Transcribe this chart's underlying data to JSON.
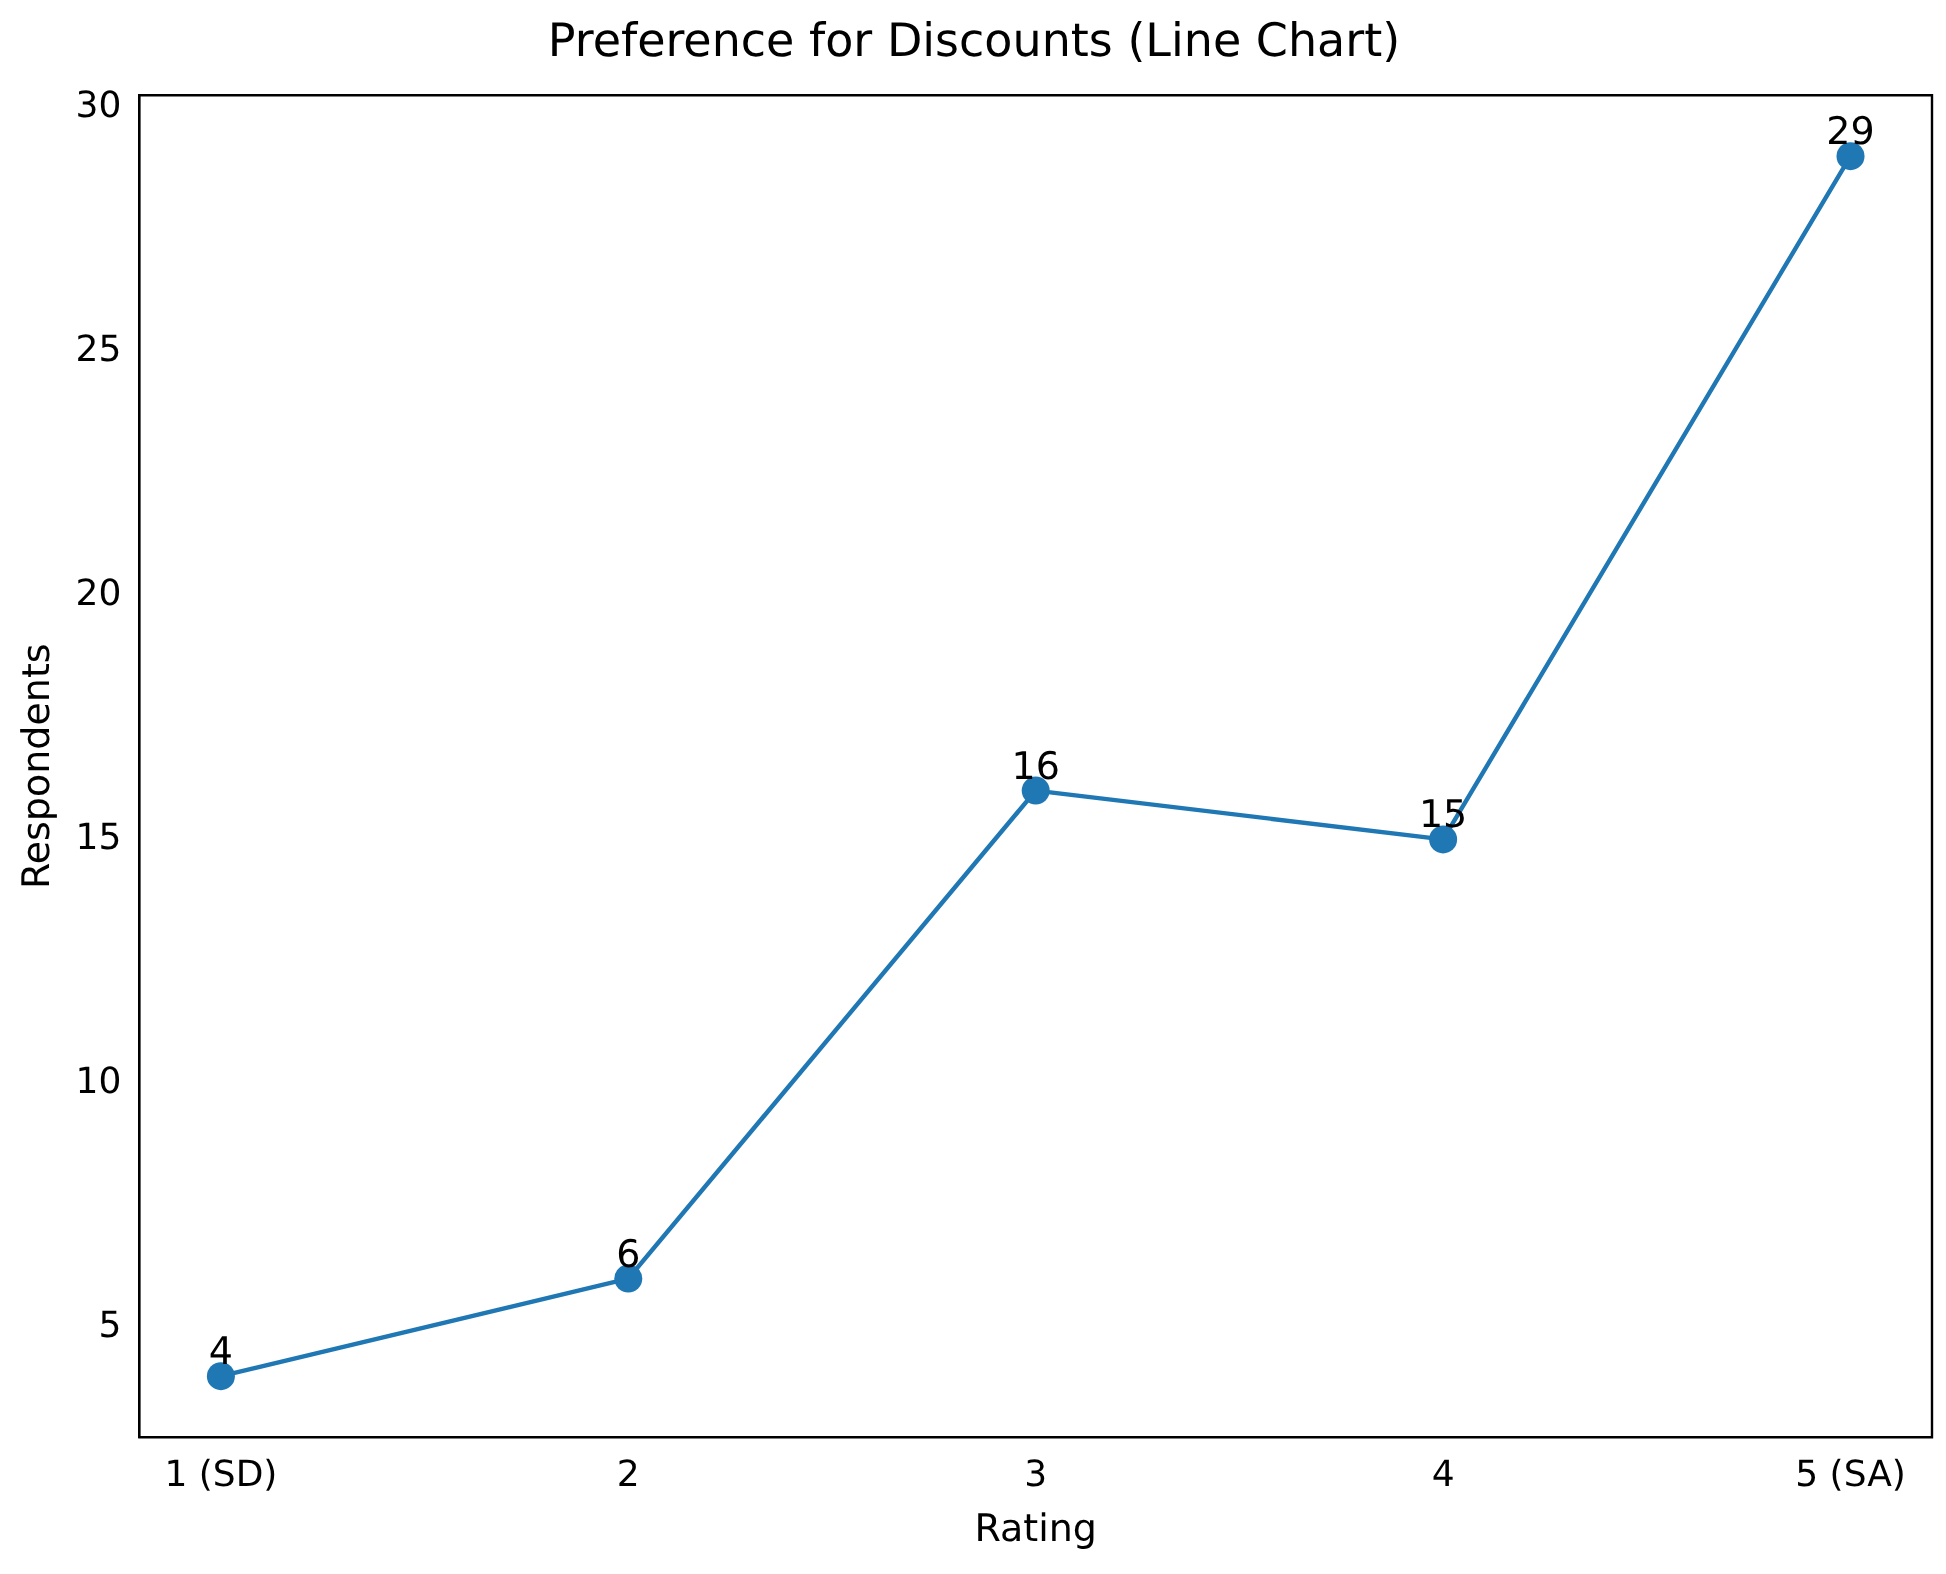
{
  "chart_data": {
    "type": "line",
    "title": "Preference for Discounts (Line Chart)",
    "xlabel": "Rating",
    "ylabel": "Respondents",
    "categories": [
      "1 (SD)",
      "2",
      "3",
      "4",
      "5 (SA)"
    ],
    "series": [
      {
        "color": "#1f77b4",
        "values": [
          4,
          6,
          16,
          15,
          29
        ]
      }
    ],
    "ylim": [
      2.75,
      30.25
    ],
    "yticks": [
      5,
      10,
      15,
      20,
      25,
      30
    ],
    "grid": false,
    "legend": false,
    "marker": "circle",
    "line_style": "solid",
    "data_labels": true
  }
}
